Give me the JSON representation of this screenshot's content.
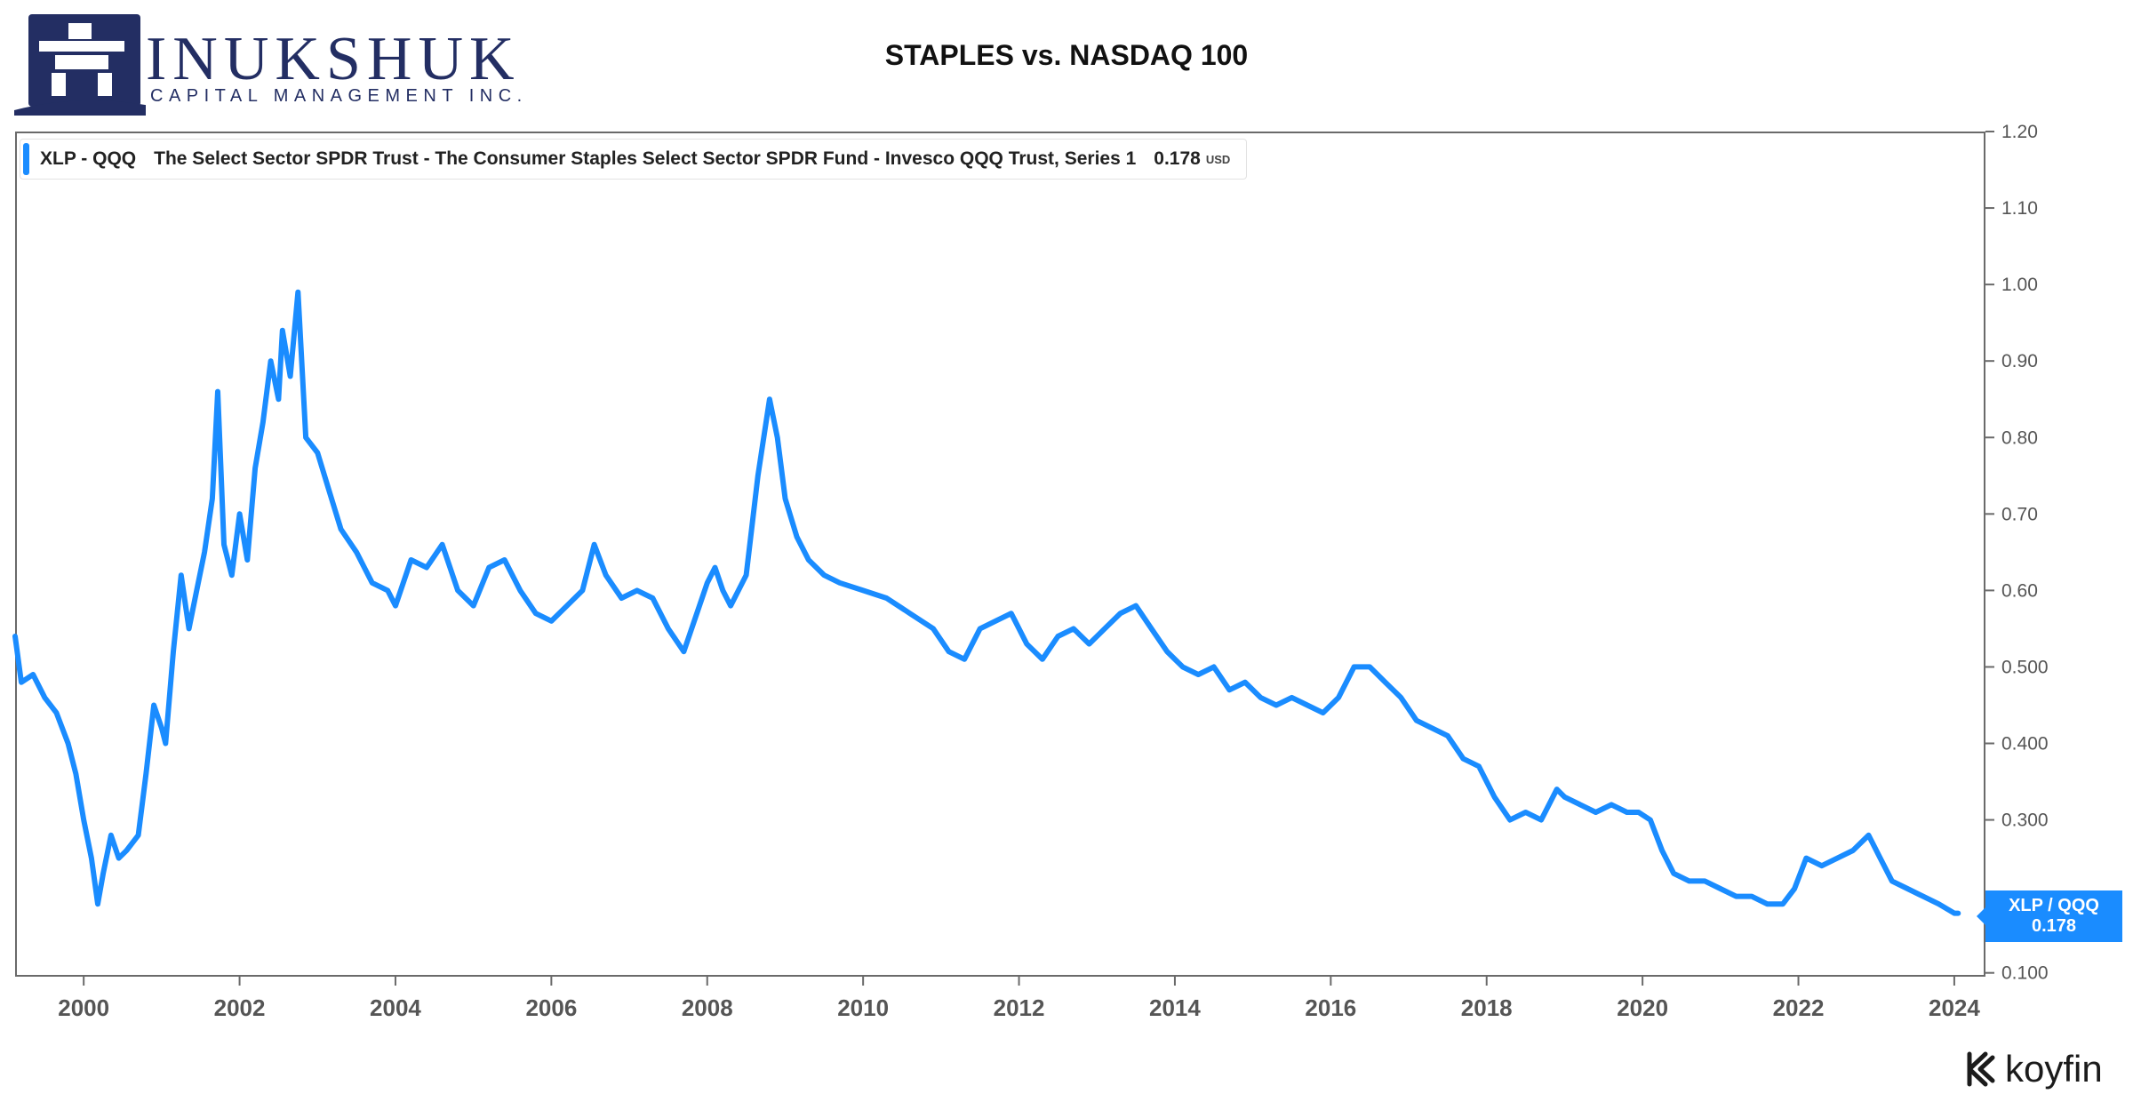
{
  "header": {
    "logo_word": "INUKSHUK",
    "logo_sub": "CAPITAL MANAGEMENT INC.",
    "title": "STAPLES vs. NASDAQ 100"
  },
  "legend": {
    "ticker": "XLP - QQQ",
    "name": "The Select Sector SPDR Trust - The Consumer Staples Select Sector SPDR Fund - Invesco QQQ Trust, Series 1",
    "value": "0.178",
    "unit": "USD"
  },
  "price_tag": {
    "label": "XLP / QQQ",
    "value": "0.178"
  },
  "watermark": {
    "brand": "koyfin",
    "icon": "koyfin-logo-icon"
  },
  "colors": {
    "series": "#1a8cff",
    "axis_text": "#555555",
    "frame": "#6a6a6a"
  },
  "chart_data": {
    "type": "line",
    "title": "STAPLES vs. NASDAQ 100",
    "xlabel": "",
    "ylabel": "",
    "xlim": [
      1999.12,
      2024.4
    ],
    "ylim": [
      0.095,
      1.2
    ],
    "grid": false,
    "legend_position": "top-left",
    "x_ticks": [
      "2000",
      "2002",
      "2004",
      "2006",
      "2008",
      "2010",
      "2012",
      "2014",
      "2016",
      "2018",
      "2020",
      "2022",
      "2024"
    ],
    "y_ticks": [
      "1.20",
      "1.10",
      "1.00",
      "0.90",
      "0.80",
      "0.70",
      "0.60",
      "0.500",
      "0.400",
      "0.300",
      "0.100"
    ],
    "series": [
      {
        "name": "XLP - QQQ",
        "x": [
          1999.12,
          1999.2,
          1999.35,
          1999.5,
          1999.65,
          1999.8,
          1999.9,
          2000.0,
          2000.1,
          2000.18,
          2000.25,
          2000.35,
          2000.45,
          2000.55,
          2000.7,
          2000.8,
          2000.9,
          2001.0,
          2001.05,
          2001.15,
          2001.25,
          2001.35,
          2001.45,
          2001.55,
          2001.65,
          2001.72,
          2001.8,
          2001.9,
          2002.0,
          2002.1,
          2002.2,
          2002.3,
          2002.4,
          2002.5,
          2002.55,
          2002.65,
          2002.75,
          2002.85,
          2003.0,
          2003.15,
          2003.3,
          2003.5,
          2003.7,
          2003.9,
          2004.0,
          2004.2,
          2004.4,
          2004.6,
          2004.8,
          2005.0,
          2005.2,
          2005.4,
          2005.6,
          2005.8,
          2006.0,
          2006.2,
          2006.4,
          2006.55,
          2006.7,
          2006.9,
          2007.1,
          2007.3,
          2007.5,
          2007.7,
          2007.9,
          2008.0,
          2008.1,
          2008.2,
          2008.3,
          2008.5,
          2008.65,
          2008.8,
          2008.9,
          2009.0,
          2009.15,
          2009.3,
          2009.5,
          2009.7,
          2010.0,
          2010.3,
          2010.6,
          2010.9,
          2011.1,
          2011.3,
          2011.5,
          2011.7,
          2011.9,
          2012.1,
          2012.3,
          2012.5,
          2012.7,
          2012.9,
          2013.1,
          2013.3,
          2013.5,
          2013.7,
          2013.9,
          2014.1,
          2014.3,
          2014.5,
          2014.7,
          2014.9,
          2015.1,
          2015.3,
          2015.5,
          2015.7,
          2015.9,
          2016.1,
          2016.3,
          2016.5,
          2016.7,
          2016.9,
          2017.1,
          2017.3,
          2017.5,
          2017.7,
          2017.9,
          2018.1,
          2018.3,
          2018.5,
          2018.7,
          2018.9,
          2019.0,
          2019.2,
          2019.4,
          2019.6,
          2019.8,
          2019.95,
          2020.1,
          2020.25,
          2020.4,
          2020.6,
          2020.8,
          2021.0,
          2021.2,
          2021.4,
          2021.6,
          2021.8,
          2021.95,
          2022.1,
          2022.3,
          2022.5,
          2022.7,
          2022.9,
          2023.05,
          2023.2,
          2023.4,
          2023.6,
          2023.8,
          2024.0,
          2024.05
        ],
        "values": [
          0.54,
          0.48,
          0.49,
          0.46,
          0.44,
          0.4,
          0.36,
          0.3,
          0.25,
          0.19,
          0.23,
          0.28,
          0.25,
          0.26,
          0.28,
          0.36,
          0.45,
          0.42,
          0.4,
          0.52,
          0.62,
          0.55,
          0.6,
          0.65,
          0.72,
          0.86,
          0.66,
          0.62,
          0.7,
          0.64,
          0.76,
          0.82,
          0.9,
          0.85,
          0.94,
          0.88,
          0.99,
          0.8,
          0.78,
          0.73,
          0.68,
          0.65,
          0.61,
          0.6,
          0.58,
          0.64,
          0.63,
          0.66,
          0.6,
          0.58,
          0.63,
          0.64,
          0.6,
          0.57,
          0.56,
          0.58,
          0.6,
          0.66,
          0.62,
          0.59,
          0.6,
          0.59,
          0.55,
          0.52,
          0.58,
          0.61,
          0.63,
          0.6,
          0.58,
          0.62,
          0.75,
          0.85,
          0.8,
          0.72,
          0.67,
          0.64,
          0.62,
          0.61,
          0.6,
          0.59,
          0.57,
          0.55,
          0.52,
          0.51,
          0.55,
          0.56,
          0.57,
          0.53,
          0.51,
          0.54,
          0.55,
          0.53,
          0.55,
          0.57,
          0.58,
          0.55,
          0.52,
          0.5,
          0.49,
          0.5,
          0.47,
          0.48,
          0.46,
          0.45,
          0.46,
          0.45,
          0.44,
          0.46,
          0.5,
          0.5,
          0.48,
          0.46,
          0.43,
          0.42,
          0.41,
          0.38,
          0.37,
          0.33,
          0.3,
          0.31,
          0.3,
          0.34,
          0.33,
          0.32,
          0.31,
          0.32,
          0.31,
          0.31,
          0.3,
          0.26,
          0.23,
          0.22,
          0.22,
          0.21,
          0.2,
          0.2,
          0.19,
          0.19,
          0.21,
          0.25,
          0.24,
          0.25,
          0.26,
          0.28,
          0.25,
          0.22,
          0.21,
          0.2,
          0.19,
          0.178,
          0.178
        ]
      }
    ]
  }
}
